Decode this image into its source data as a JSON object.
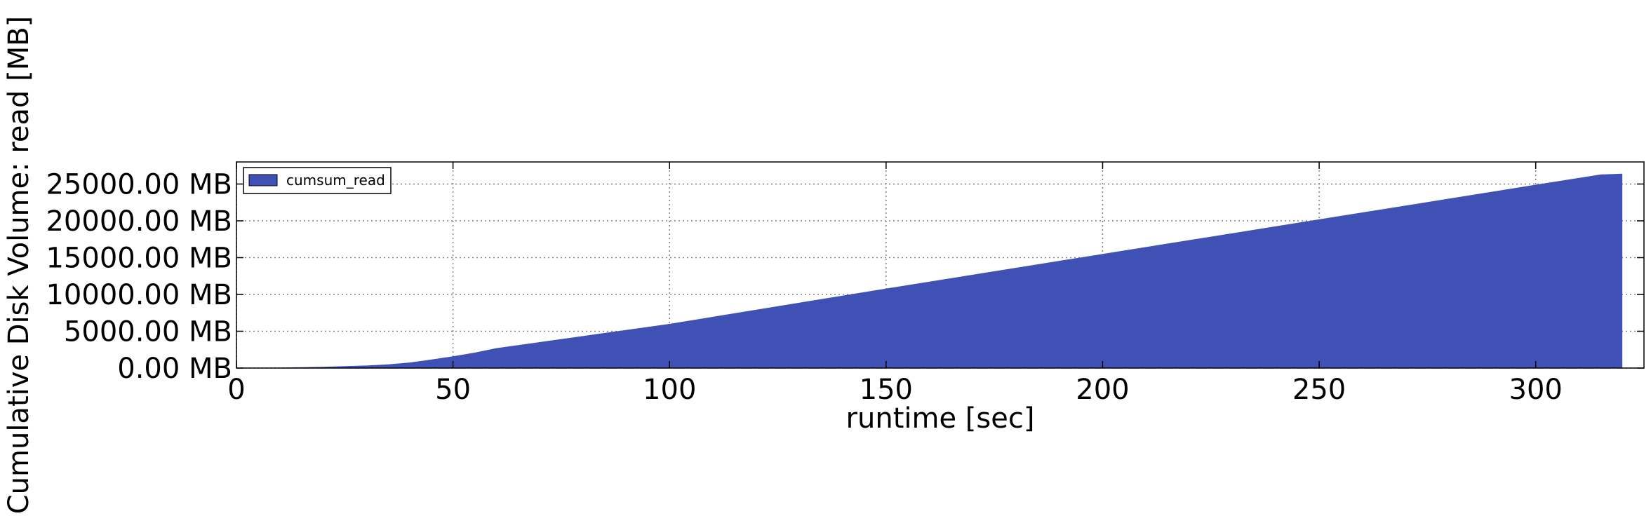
{
  "chart_data": {
    "type": "area",
    "xlabel": "runtime [sec]",
    "ylabel": "Cumulative Disk Volume: read [MB]",
    "xlim": [
      0,
      325
    ],
    "ylim": [
      0,
      28000
    ],
    "x_ticks": [
      0,
      50,
      100,
      150,
      200,
      250,
      300
    ],
    "x_tick_labels": [
      "0",
      "50",
      "100",
      "150",
      "200",
      "250",
      "300"
    ],
    "y_ticks": [
      0,
      5000,
      10000,
      15000,
      20000,
      25000
    ],
    "y_tick_labels": [
      "0.00 MB",
      "5000.00 MB",
      "10000.00 MB",
      "15000.00 MB",
      "20000.00 MB",
      "25000.00 MB"
    ],
    "grid": true,
    "legend_position": "top-left",
    "series": [
      {
        "name": "cumsum_read",
        "color": "#3f51b5",
        "x": [
          0,
          10,
          20,
          30,
          35,
          40,
          45,
          50,
          55,
          60,
          100,
          150,
          200,
          250,
          300,
          315,
          320
        ],
        "y": [
          0,
          60,
          170,
          350,
          500,
          750,
          1150,
          1600,
          2100,
          2700,
          6000,
          10800,
          15500,
          20200,
          24900,
          26300,
          26400
        ]
      }
    ]
  }
}
